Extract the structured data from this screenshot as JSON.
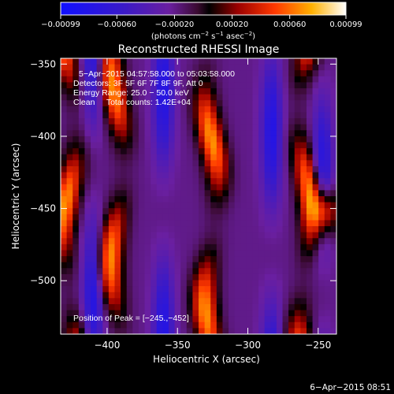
{
  "chart_data": {
    "type": "heatmap",
    "title": "Reconstructed RHESSI Image",
    "xlabel": "Heliocentric X (arcsec)",
    "ylabel": "Heliocentric Y (arcsec)",
    "xlim": [
      -433,
      -237
    ],
    "ylim": [
      -537,
      -346
    ],
    "x_ticks": [
      -400,
      -350,
      -300,
      -250
    ],
    "y_ticks": [
      -350,
      -400,
      -450,
      -500
    ],
    "x_tick_labels": [
      "−400",
      "−350",
      "−300",
      "−250"
    ],
    "y_tick_labels": [
      "−350",
      "−400",
      "−450",
      "−500"
    ],
    "colorbar": {
      "range": [
        -0.00099,
        0.00099
      ],
      "ticks": [
        -0.00099,
        -0.0006,
        -0.0002,
        0.0002,
        0.0006,
        0.00099
      ],
      "tick_labels": [
        "−0.00099",
        "−0.00060",
        "−0.00020",
        "0.00020",
        "0.00060",
        "0.00099"
      ],
      "unit_text": "(photons cm",
      "unit_exp1": "−2",
      "unit_mid": " s",
      "unit_exp2": "−1",
      "unit_mid2": " asec",
      "unit_exp3": "−2",
      "unit_end": ")"
    },
    "annotations": {
      "time_range": "5−Apr−2015 04:57:58.000 to 05:03:58.000",
      "detectors": "Detectors: 3F 5F 6F 7F 8F 9F, Att 0",
      "energy": "Energy Range: 25.0 − 50.0 keV",
      "method": "Clean     Total counts: 1.42E+04",
      "peak": "Position of Peak = [−245.,−452]"
    },
    "peak": [
      -245,
      -452
    ],
    "image_shape": [
      46,
      46
    ],
    "image_model": {
      "description": "vertical bands of alternating emission",
      "bright_band_centers_x": [
        -427,
        -393,
        -326,
        -259
      ],
      "dark_band_centers_x": [
        -410,
        -360,
        -283,
        -247
      ],
      "band_width": 9
    }
  },
  "footer": {
    "timestamp": "6−Apr−2015 08:51"
  }
}
